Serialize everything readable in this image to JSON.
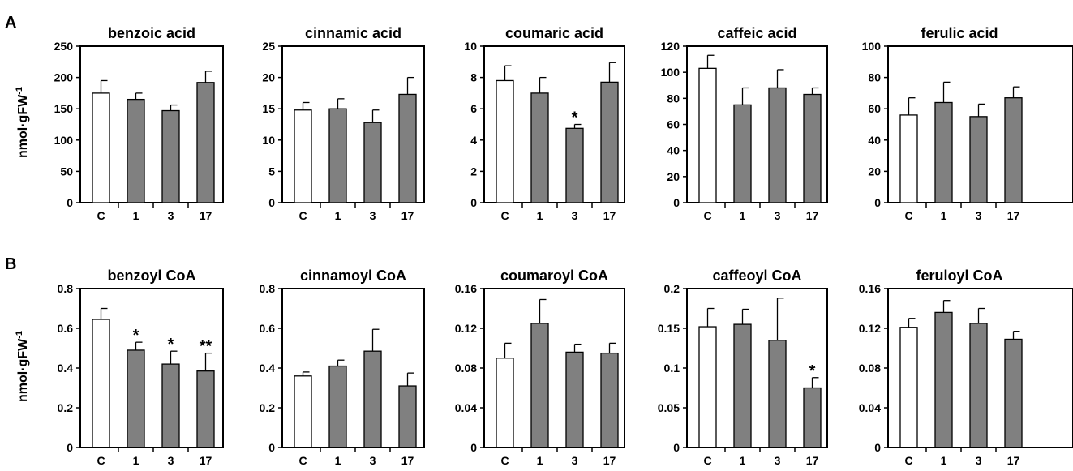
{
  "panels": [
    {
      "letter": "A",
      "ylabel": "nmol·gFW",
      "ylabel_sup": "-1"
    },
    {
      "letter": "B",
      "ylabel": "nmol·gFW",
      "ylabel_sup": "-1"
    }
  ],
  "colors": {
    "control_bar": "#ffffff",
    "treated_bar": "#808080",
    "axis": "#000000"
  },
  "chart_data": [
    {
      "type": "bar",
      "title": "benzoic acid",
      "categories": [
        "C",
        "1",
        "3",
        "17"
      ],
      "values": [
        175,
        165,
        147,
        192
      ],
      "errors": [
        20,
        10,
        9,
        18
      ],
      "significance": [
        "",
        "",
        "",
        ""
      ],
      "ylim": [
        0,
        250
      ],
      "yticks": [
        0,
        50,
        100,
        150,
        200,
        250
      ],
      "ytick_labels": [
        "0",
        "50",
        "100",
        "150",
        "200",
        "250"
      ]
    },
    {
      "type": "bar",
      "title": "cinnamic acid",
      "categories": [
        "C",
        "1",
        "3",
        "17"
      ],
      "values": [
        14.8,
        15,
        12.8,
        17.3
      ],
      "errors": [
        1.2,
        1.6,
        2,
        2.7
      ],
      "significance": [
        "",
        "",
        "",
        ""
      ],
      "ylim": [
        0,
        25
      ],
      "yticks": [
        0,
        5,
        10,
        15,
        20,
        25
      ],
      "ytick_labels": [
        "0",
        "5",
        "10",
        "15",
        "20",
        "25"
      ]
    },
    {
      "type": "bar",
      "title": "coumaric acid",
      "categories": [
        "C",
        "1",
        "3",
        "17"
      ],
      "values": [
        7.8,
        7.0,
        4.75,
        7.7
      ],
      "errors": [
        0.95,
        1.0,
        0.25,
        1.25
      ],
      "significance": [
        "",
        "",
        "*",
        ""
      ],
      "ylim": [
        0,
        10
      ],
      "yticks": [
        0,
        2,
        4,
        6,
        8,
        10
      ],
      "ytick_labels": [
        "0",
        "2",
        "4",
        "6",
        "8",
        "10"
      ]
    },
    {
      "type": "bar",
      "title": "caffeic acid",
      "categories": [
        "C",
        "1",
        "3",
        "17"
      ],
      "values": [
        103,
        75,
        88,
        83
      ],
      "errors": [
        10,
        13,
        14,
        5
      ],
      "significance": [
        "",
        "",
        "",
        ""
      ],
      "ylim": [
        0,
        120
      ],
      "yticks": [
        0,
        20,
        40,
        60,
        80,
        100,
        120
      ],
      "ytick_labels": [
        "0",
        "20",
        "40",
        "60",
        "80",
        "100",
        "120"
      ]
    },
    {
      "type": "bar",
      "title": "ferulic acid",
      "categories": [
        "C",
        "1",
        "3",
        "17"
      ],
      "values": [
        56,
        64,
        55,
        67
      ],
      "errors": [
        11,
        13,
        8,
        7
      ],
      "significance": [
        "",
        "",
        "",
        ""
      ],
      "ylim": [
        0,
        100
      ],
      "yticks": [
        0,
        20,
        40,
        60,
        80,
        100
      ],
      "ytick_labels": [
        "0",
        "20",
        "40",
        "60",
        "80",
        "100"
      ]
    },
    {
      "type": "bar",
      "title": "benzoyl CoA",
      "categories": [
        "C",
        "1",
        "3",
        "17"
      ],
      "values": [
        0.645,
        0.49,
        0.42,
        0.385
      ],
      "errors": [
        0.055,
        0.04,
        0.065,
        0.09
      ],
      "significance": [
        "",
        "*",
        "*",
        "**"
      ],
      "ylim": [
        0,
        0.8
      ],
      "yticks": [
        0,
        0.2,
        0.4,
        0.6,
        0.8
      ],
      "ytick_labels": [
        "0",
        "0.2",
        "0.4",
        "0.6",
        "0.8"
      ]
    },
    {
      "type": "bar",
      "title": "cinnamoyl CoA",
      "categories": [
        "C",
        "1",
        "3",
        "17"
      ],
      "values": [
        0.36,
        0.41,
        0.485,
        0.31
      ],
      "errors": [
        0.02,
        0.03,
        0.11,
        0.065
      ],
      "significance": [
        "",
        "",
        "",
        ""
      ],
      "ylim": [
        0,
        0.8
      ],
      "yticks": [
        0,
        0.2,
        0.4,
        0.6,
        0.8
      ],
      "ytick_labels": [
        "0",
        "0.2",
        "0.4",
        "0.6",
        "0.8"
      ]
    },
    {
      "type": "bar",
      "title": "coumaroyl CoA",
      "categories": [
        "C",
        "1",
        "3",
        "17"
      ],
      "values": [
        0.09,
        0.125,
        0.096,
        0.095
      ],
      "errors": [
        0.015,
        0.024,
        0.008,
        0.01
      ],
      "significance": [
        "",
        "",
        "",
        ""
      ],
      "ylim": [
        0,
        0.16
      ],
      "yticks": [
        0,
        0.04,
        0.08,
        0.12,
        0.16
      ],
      "ytick_labels": [
        "0",
        "0.04",
        "0.08",
        "0.12",
        "0.16"
      ]
    },
    {
      "type": "bar",
      "title": "caffeoyl CoA",
      "categories": [
        "C",
        "1",
        "3",
        "17"
      ],
      "values": [
        0.152,
        0.155,
        0.135,
        0.075
      ],
      "errors": [
        0.023,
        0.019,
        0.053,
        0.013
      ],
      "significance": [
        "",
        "",
        "",
        "*"
      ],
      "ylim": [
        0,
        0.2
      ],
      "yticks": [
        0,
        0.05,
        0.1,
        0.15,
        0.2
      ],
      "ytick_labels": [
        "0",
        "0.05",
        "0.1",
        "0.15",
        "0.2"
      ]
    },
    {
      "type": "bar",
      "title": "feruloyl CoA",
      "categories": [
        "C",
        "1",
        "3",
        "17"
      ],
      "values": [
        0.121,
        0.136,
        0.125,
        0.109
      ],
      "errors": [
        0.009,
        0.012,
        0.015,
        0.008
      ],
      "significance": [
        "",
        "",
        "",
        ""
      ],
      "ylim": [
        0,
        0.16
      ],
      "yticks": [
        0,
        0.04,
        0.08,
        0.12,
        0.16
      ],
      "ytick_labels": [
        "0",
        "0.04",
        "0.08",
        "0.12",
        "0.16"
      ]
    }
  ]
}
